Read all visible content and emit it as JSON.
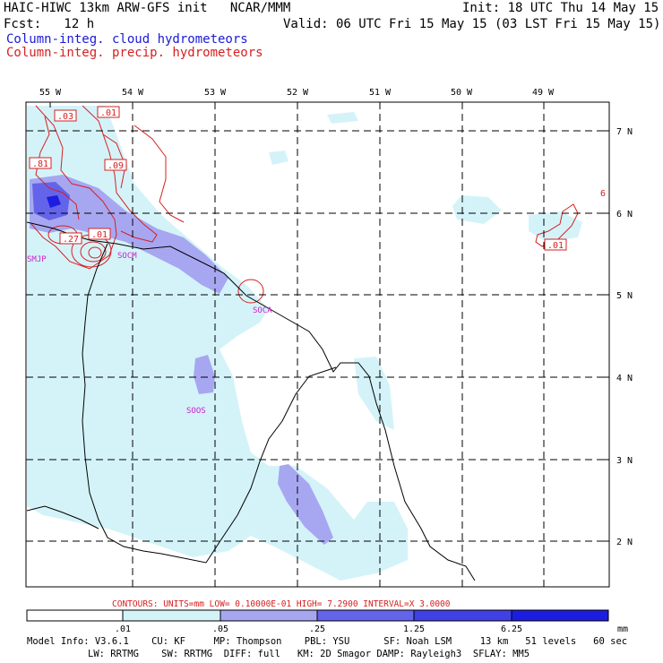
{
  "header": {
    "left_line1": "HAIC-HIWC 13km ARW-GFS init   NCAR/MMM",
    "left_line2": "Fcst:   12 h",
    "init": "Init: 18 UTC Thu 14 May 15",
    "valid": "Valid: 06 UTC Fri 15 May 15 (03 LST Fri 15 May 15)",
    "legend_cloud": "Column-integ. cloud hydrometeors",
    "legend_precip": "Column-integ. precip. hydrometeors"
  },
  "colors": {
    "cloud_light": "#d4f3f9",
    "cloud_mid": "#a7a7f1",
    "cloud_dark": "#6464ea",
    "cloud_darkest": "#1d1ddf",
    "precip": "#d62020",
    "station": "#cc22cc",
    "coast": "#000000"
  },
  "map": {
    "lon_labels": [
      "55 W",
      "54 W",
      "53 W",
      "52 W",
      "51 W",
      "50 W",
      "49 W"
    ],
    "lat_labels": [
      "7 N",
      "6 N",
      "5 N",
      "4 N",
      "3 N",
      "2 N"
    ],
    "stations": [
      "SMJP",
      "SOCM",
      "SOCA",
      "SOOS"
    ],
    "contour_labels": [
      ".03",
      ".01",
      ".81",
      ".09",
      ".27",
      ".01",
      ".01",
      "6"
    ]
  },
  "contour_info": {
    "text": "CONTOURS:  UNITS=mm  LOW= 0.10000E-01  HIGH=  7.2900     INTERVAL=X  3.0000"
  },
  "colorbar": {
    "levels": [
      ".01",
      ".05",
      ".25",
      "1.25",
      "6.25"
    ],
    "units": "mm"
  },
  "footer": {
    "line1": "Model Info: V3.6.1    CU: KF     MP: Thompson    PBL: YSU      SF: Noah LSM     13 km   51 levels   60 sec",
    "line2": "LW: RRTMG    SW: RRTMG  DIFF: full   KM: 2D Smagor DAMP: Rayleigh3  SFLAY: MM5"
  }
}
